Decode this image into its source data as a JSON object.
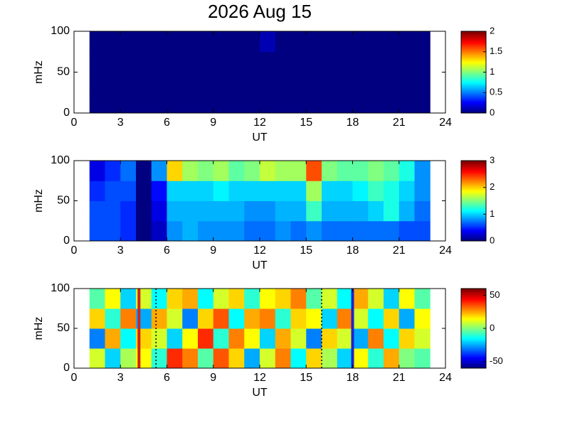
{
  "chart_data": [
    {
      "type": "heatmap",
      "title": "2026 Aug 15",
      "xlabel": "UT",
      "ylabel": "mHz",
      "xlim": [
        0,
        24
      ],
      "xticks": [
        0,
        3,
        6,
        9,
        12,
        15,
        18,
        21,
        24
      ],
      "ylim": [
        0,
        100
      ],
      "yticks": [
        0,
        50,
        100
      ],
      "xbins": [
        1,
        2,
        3,
        4,
        5,
        6,
        7,
        8,
        9,
        10,
        11,
        12,
        13,
        14,
        15,
        16,
        17,
        18,
        19,
        20,
        21,
        22,
        23
      ],
      "ybins": [
        0,
        25,
        50,
        75,
        100
      ],
      "z": [
        [
          0,
          0,
          0,
          0,
          0,
          0,
          0,
          0,
          0,
          0,
          0,
          0,
          0,
          0,
          0,
          0,
          0,
          0,
          0,
          0,
          0,
          0
        ],
        [
          0,
          0,
          0,
          0,
          0,
          0,
          0,
          0,
          0,
          0,
          0,
          0,
          0,
          0,
          0,
          0,
          0,
          0,
          0,
          0,
          0,
          0
        ],
        [
          0,
          0,
          0,
          0,
          0,
          0,
          0,
          0,
          0,
          0,
          0,
          0,
          0,
          0,
          0,
          0,
          0,
          0,
          0,
          0,
          0,
          0
        ],
        [
          0,
          0,
          0,
          0,
          0,
          0,
          0,
          0,
          0,
          0,
          0,
          0.1,
          0,
          0,
          0,
          0,
          0,
          0,
          0,
          0,
          0,
          0
        ]
      ],
      "colormap": "jet",
      "clim": [
        0,
        2
      ],
      "cticks": [
        0,
        0.5,
        1,
        1.5,
        2
      ]
    },
    {
      "type": "heatmap",
      "xlabel": "UT",
      "ylabel": "mHz",
      "xlim": [
        0,
        24
      ],
      "xticks": [
        0,
        3,
        6,
        9,
        12,
        15,
        18,
        21,
        24
      ],
      "ylim": [
        0,
        100
      ],
      "yticks": [
        0,
        50,
        100
      ],
      "xbins": [
        1,
        2,
        3,
        4,
        5,
        6,
        7,
        8,
        9,
        10,
        11,
        12,
        13,
        14,
        15,
        16,
        17,
        18,
        19,
        20,
        21,
        22,
        23
      ],
      "ybins": [
        0,
        25,
        50,
        75,
        100
      ],
      "z": [
        [
          0.6,
          0.6,
          0.5,
          0,
          0.2,
          0.8,
          0.9,
          0.8,
          0.8,
          0.8,
          0.7,
          0.7,
          0.8,
          0.7,
          0.8,
          0.7,
          0.7,
          0.7,
          0.7,
          0.7,
          0.6,
          0.6
        ],
        [
          0.6,
          0.6,
          0.5,
          0,
          0.3,
          0.9,
          0.9,
          0.9,
          0.9,
          0.9,
          0.8,
          0.8,
          0.9,
          0.9,
          1.3,
          0.9,
          0.9,
          0.9,
          1.0,
          1.2,
          0.9,
          0.7
        ],
        [
          0.5,
          0.6,
          0.6,
          0,
          0.4,
          1.0,
          1.0,
          1.0,
          1.1,
          1.0,
          1.0,
          1.0,
          1.0,
          1.0,
          1.6,
          1.0,
          1.0,
          1.1,
          1.3,
          1.2,
          1.0,
          0.8
        ],
        [
          0.3,
          0.5,
          0.7,
          0,
          0.8,
          2.0,
          1.6,
          1.5,
          1.6,
          1.4,
          1.5,
          1.7,
          1.6,
          1.6,
          2.4,
          1.5,
          1.4,
          1.4,
          1.5,
          1.4,
          1.2,
          0.8
        ]
      ],
      "colormap": "jet",
      "clim": [
        0,
        3
      ],
      "cticks": [
        0,
        1,
        2,
        3
      ]
    },
    {
      "type": "heatmap",
      "xlabel": "UT",
      "ylabel": "mHz",
      "xlim": [
        0,
        24
      ],
      "xticks": [
        0,
        3,
        6,
        9,
        12,
        15,
        18,
        21,
        24
      ],
      "ylim": [
        0,
        100
      ],
      "yticks": [
        0,
        50,
        100
      ],
      "xbins": [
        1,
        2,
        3,
        4,
        5,
        6,
        7,
        8,
        9,
        10,
        11,
        12,
        13,
        14,
        15,
        16,
        17,
        18,
        19,
        20,
        21,
        22,
        23
      ],
      "ybins": [
        0,
        25,
        50,
        75,
        100
      ],
      "z": [
        [
          10,
          -20,
          5,
          15,
          -10,
          40,
          30,
          -5,
          35,
          20,
          -25,
          10,
          30,
          -15,
          20,
          5,
          -20,
          15,
          -10,
          25,
          0,
          -5
        ],
        [
          -30,
          25,
          -15,
          20,
          10,
          -20,
          15,
          40,
          -10,
          30,
          15,
          -20,
          25,
          10,
          -30,
          20,
          10,
          -25,
          30,
          -15,
          20,
          10
        ],
        [
          20,
          -10,
          30,
          -25,
          25,
          10,
          -30,
          20,
          35,
          -15,
          25,
          30,
          -10,
          20,
          15,
          -20,
          30,
          10,
          -15,
          20,
          -25,
          15
        ],
        [
          -5,
          15,
          -20,
          10,
          -15,
          20,
          25,
          -15,
          10,
          20,
          -10,
          15,
          20,
          30,
          -5,
          10,
          -15,
          25,
          10,
          -20,
          15,
          -5
        ]
      ],
      "colormap": "jet",
      "clim": [
        -60,
        60
      ],
      "cticks": [
        -50,
        0,
        50
      ],
      "vlines": [
        {
          "x": 4.2,
          "color": "#d02020",
          "style": "solid"
        },
        {
          "x": 5.3,
          "color": "#000000",
          "style": "dotted"
        },
        {
          "x": 16,
          "color": "#000000",
          "style": "dotted"
        },
        {
          "x": 18,
          "color": "#2020d0",
          "style": "solid"
        }
      ]
    }
  ]
}
